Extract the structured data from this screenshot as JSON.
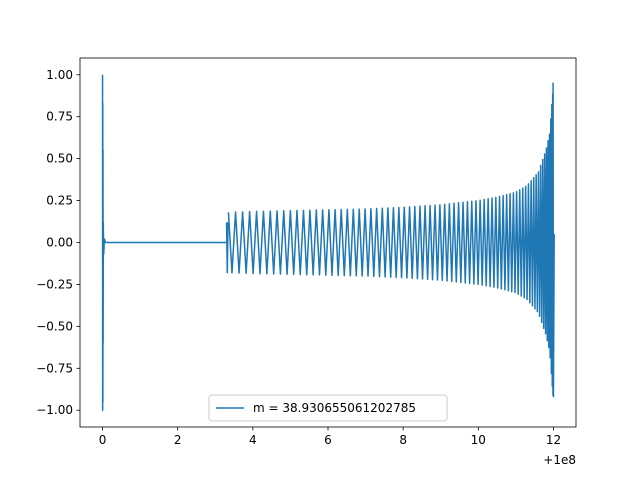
{
  "chart_data": {
    "type": "line",
    "title": "",
    "xlabel": "",
    "ylabel": "",
    "x_offset_label": "+1e8",
    "xlim": [
      -0.6,
      12.6
    ],
    "ylim": [
      -1.1,
      1.1
    ],
    "x_ticks": [
      0,
      2,
      4,
      6,
      8,
      10,
      12
    ],
    "y_ticks": [
      1.0,
      0.75,
      0.5,
      0.25,
      0.0,
      -0.25,
      -0.5,
      -0.75,
      -1.0
    ],
    "x_tick_labels": [
      "0",
      "2",
      "4",
      "6",
      "8",
      "10",
      "12"
    ],
    "y_tick_labels": [
      "1.00",
      "0.75",
      "0.50",
      "0.25",
      "0.00",
      "−0.25",
      "−0.50",
      "−0.75",
      "−1.00"
    ],
    "grid": false,
    "legend_position": "bottom-center",
    "series": [
      {
        "name": "m = 38.930655061202785",
        "color": "#1f77b4",
        "segments": [
          {
            "x": [
              0.0,
              0.003,
              0.006,
              0.009,
              0.012,
              0.015,
              0.02,
              0.03,
              0.05,
              0.08,
              0.1
            ],
            "y": [
              1.0,
              -1.0,
              0.83,
              -0.95,
              0.55,
              -0.6,
              0.12,
              -0.07,
              0.02,
              0.0,
              0.0
            ]
          },
          {
            "x": [
              0.1,
              3.3
            ],
            "y": [
              0.0,
              0.0
            ]
          },
          {
            "x": [
              3.3,
              3.32,
              3.34
            ],
            "y": [
              0.12,
              -0.18,
              0.12
            ]
          }
        ],
        "oscillation": {
          "x_start": 3.35,
          "x_end": 12.0,
          "envelope_x": [
            3.35,
            4.0,
            5.0,
            6.0,
            7.0,
            8.0,
            9.0,
            10.0,
            10.5,
            11.0,
            11.3,
            11.6,
            11.8,
            11.9,
            11.95,
            12.0
          ],
          "envelope_y": [
            0.18,
            0.185,
            0.19,
            0.195,
            0.2,
            0.21,
            0.225,
            0.25,
            0.27,
            0.3,
            0.34,
            0.42,
            0.55,
            0.65,
            0.8,
            0.95
          ],
          "peak_x": 11.99
        }
      }
    ]
  }
}
